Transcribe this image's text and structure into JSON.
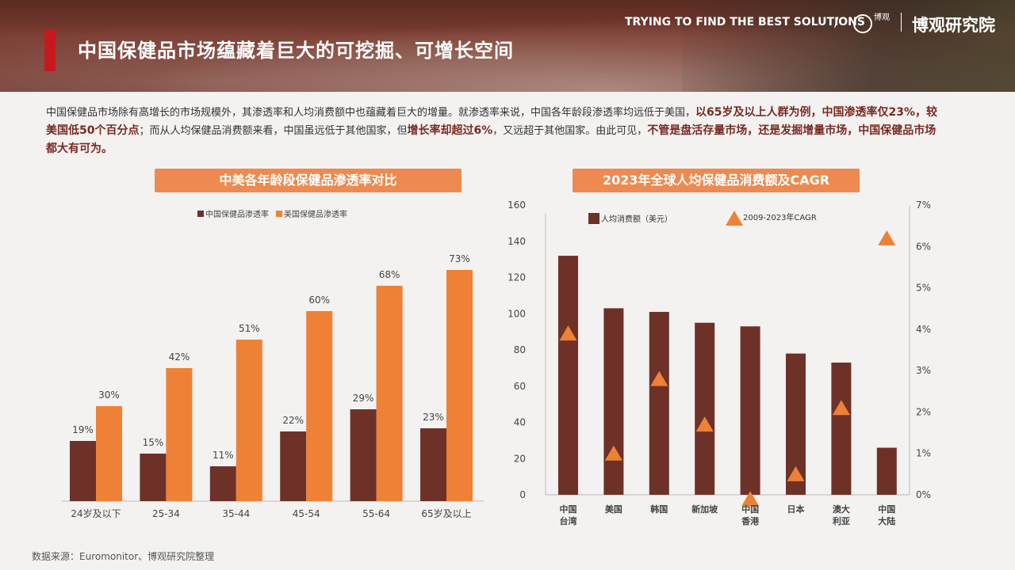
{
  "header": {
    "title": "中国保健品市场蕴藏着巨大的可挖掘、可增长空间",
    "tagline": "TRYING TO FIND THE BEST SOLUTIONS",
    "separator": "/",
    "logo_mark": "博观",
    "brand": "博观研究院"
  },
  "intro": {
    "p1": "中国保健品市场除有高增长的市场规模外，其渗透率和人均消费额中也蕴藏着巨大的增量。就渗透率来说，中国各年龄段渗透率均远低于美国，",
    "b1": "以65岁及以上人群为例，中国渗透率仅23%，较美国低50个百分点",
    "p2": "；而从人均保健品消费额来看，中国虽远低于其他国家，但",
    "b2": "增长率却超过6%",
    "p3": "，又远超于其他国家。由此可见，",
    "b3": "不管是盘活存量市场，还是发掘增量市场，中国保健品市场都大有可为。"
  },
  "chart_data": [
    {
      "type": "bar",
      "title": "中美各年龄段保健品渗透率对比",
      "categories": [
        "24岁及以下",
        "25-34",
        "35-44",
        "45-54",
        "55-64",
        "65岁及以上"
      ],
      "series": [
        {
          "name": "中国保健品渗透率",
          "values": [
            19,
            15,
            11,
            22,
            29,
            23
          ],
          "labels": [
            "19%",
            "15%",
            "11%",
            "22%",
            "29%",
            "23%"
          ],
          "color": "#6e3128"
        },
        {
          "name": "美国保健品渗透率",
          "values": [
            30,
            42,
            51,
            60,
            68,
            73
          ],
          "labels": [
            "30%",
            "42%",
            "51%",
            "60%",
            "68%",
            "73%"
          ],
          "color": "#ee8136"
        }
      ],
      "ylim": [
        0,
        80
      ]
    },
    {
      "type": "bar",
      "title": "2023年全球人均保健品消费额及CAGR",
      "categories": [
        [
          "中国",
          "台湾"
        ],
        [
          "美国"
        ],
        [
          "韩国"
        ],
        [
          "新加坡"
        ],
        [
          "中国",
          "香港"
        ],
        [
          "日本"
        ],
        [
          "澳大",
          "利亚"
        ],
        [
          "中国",
          "大陆"
        ]
      ],
      "series": [
        {
          "name": "人均消费额（美元）",
          "values": [
            132,
            103,
            101,
            95,
            93,
            78,
            73,
            26
          ],
          "color": "#6e3128",
          "axis": "left"
        },
        {
          "name": "2009-2023年CAGR",
          "values": [
            3.9,
            1.0,
            2.8,
            1.7,
            -0.1,
            0.5,
            2.1,
            6.2
          ],
          "color": "#ee8136",
          "marker": "triangle",
          "axis": "right"
        }
      ],
      "ylim_left": [
        0,
        160
      ],
      "yticks_left": [
        "0",
        "20",
        "40",
        "60",
        "80",
        "100",
        "120",
        "140",
        "160"
      ],
      "ylim_right": [
        0,
        7
      ],
      "yticks_right": [
        "0%",
        "1%",
        "2%",
        "3%",
        "4%",
        "5%",
        "6%",
        "7%"
      ]
    }
  ],
  "footer": {
    "source": "数据来源：Euromonitor、博观研究院整理"
  }
}
